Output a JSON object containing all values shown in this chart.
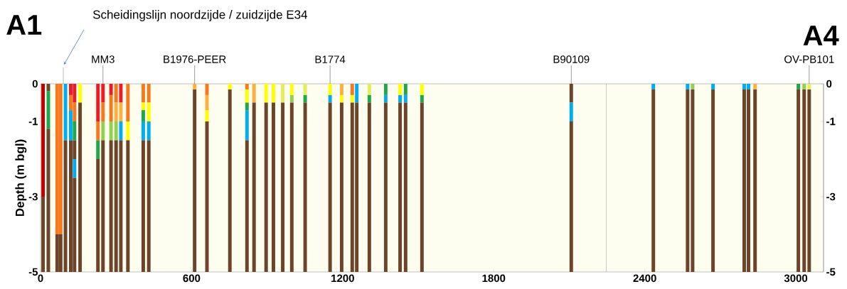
{
  "chart_data": {
    "type": "bar",
    "stacked": true,
    "ylabel": "Depth (m bgl)",
    "x": [
      10,
      31,
      66,
      80,
      99,
      120,
      135,
      157,
      228,
      248,
      280,
      300,
      319,
      347,
      408,
      430,
      612,
      661,
      752,
      820,
      848,
      896,
      925,
      962,
      998,
      1051,
      1150,
      1196,
      1238,
      1256,
      1306,
      1371,
      1428,
      1450,
      1515,
      2108,
      2434,
      2570,
      2590,
      2671,
      2795,
      2812,
      2838,
      3010,
      3033,
      3053
    ],
    "xlim": [
      0,
      3110
    ],
    "xticks": [
      0,
      600,
      1200,
      1800,
      2400,
      3000
    ],
    "ylim": [
      -5,
      0
    ],
    "yticks": [
      0,
      -1,
      -3,
      -5
    ],
    "y2lim": [
      -5,
      0
    ],
    "y2ticks": [
      0,
      -1,
      -3,
      -5
    ],
    "series": [
      {
        "values": [
          -3,
          -0.2,
          -4,
          -4,
          -1.5,
          -0.3,
          -0.5,
          -0.5,
          -1.0,
          -0.5,
          -0.3,
          -0.5,
          -0.5,
          -1.0,
          -0.5,
          -0.5,
          -0.15,
          -0.3,
          -0.15,
          -0.15,
          -0.5,
          -0.5,
          -0.5,
          -0.5,
          -0.3,
          -0.3,
          -0.3,
          -0.3,
          -0.3,
          -0.5,
          -0.3,
          -0.3,
          -0.3,
          -0.3,
          -0.3,
          -0.5,
          -0.15,
          -0.15,
          -0.15,
          -0.15,
          -0.15,
          -0.15,
          -0.15,
          -0.15,
          -0.15,
          -0.15
        ],
        "colors": [
          "#c00000",
          "#6b4429",
          "#f7791f",
          "#f7791f",
          "#00aeef",
          "#ed1c24",
          "#ed1c24",
          "#ffff00",
          "#ed1c24",
          "#ed1c24",
          "#ed1c24",
          "#f7791f",
          "#ed1c24",
          "#f7791f",
          "#f7791f",
          "#f7791f",
          "#fbb040",
          "#f7791f",
          "#ffff00",
          "#f7791f",
          "#fbb040",
          "#ffff00",
          "#ffff00",
          "#e4ee5c",
          "#ffff00",
          "#e4ee5c",
          "#ffff00",
          "#fbb040",
          "#f7791f",
          "#00aeef",
          "#e4ee5c",
          "#1ea84b",
          "#ffff00",
          "#1ea84b",
          "#ffff00",
          "#6b4429",
          "#00aeef",
          "#00aeef",
          "#92d050",
          "#00aeef",
          "#00aeef",
          "#00aeef",
          "#fbb040",
          "#1ea84b",
          "#92d050",
          "#e4ee5c"
        ]
      },
      {
        "values": [
          -2,
          -1.0,
          -1,
          -1,
          -3.5,
          -0.4,
          -0.5,
          -4.5,
          -0.5,
          -0.5,
          -0.7,
          -0.5,
          -0.5,
          -0.5,
          -0.2,
          -0.5,
          -4.85,
          -0.4,
          -4.85,
          -0.35,
          -4.5,
          -4.5,
          -4.5,
          -4.5,
          -0.2,
          -0.2,
          -0.2,
          -0.2,
          -0.2,
          -4.5,
          -0.2,
          -0.2,
          -0.2,
          -0.2,
          -0.2,
          -0.5,
          -4.85,
          -4.85,
          -4.85,
          -4.85,
          -4.85,
          -4.85,
          -4.85,
          -4.85,
          -4.85,
          -4.85
        ],
        "colors": [
          "#6b4429",
          "#1ea84b",
          "#6b4429",
          "#6b4429",
          "#6b4429",
          "#f7791f",
          "#f7791f",
          "#6b4429",
          "#f7791f",
          "#f7791f",
          "#f7791f",
          "#fbb040",
          "#fbb040",
          "#ffff00",
          "#ffff00",
          "#ffff00",
          "#6b4429",
          "#fbb040",
          "#6b4429",
          "#ffff00",
          "#6b4429",
          "#6b4429",
          "#6b4429",
          "#6b4429",
          "#92d050",
          "#1ea84b",
          "#00aeef",
          "#ffff00",
          "#ffff00",
          "#6b4429",
          "#1ea84b",
          "#00aeef",
          "#00aeef",
          "#00aeef",
          "#1ea84b",
          "#00aeef",
          "#6b4429",
          "#6b4429",
          "#6b4429",
          "#6b4429",
          "#6b4429",
          "#6b4429",
          "#6b4429",
          "#6b4429",
          "#6b4429",
          "#6b4429"
        ]
      },
      {
        "values": [
          null,
          -3.8,
          null,
          null,
          null,
          -0.8,
          -0.5,
          null,
          -0.5,
          -0.5,
          -0.5,
          -0.5,
          -0.5,
          -3.5,
          -0.3,
          -0.5,
          null,
          -0.3,
          null,
          -0.2,
          null,
          null,
          null,
          null,
          -4.5,
          -4.5,
          -4.5,
          -4.5,
          -4.5,
          null,
          -4.5,
          -4.5,
          -4.5,
          -4.5,
          -4.5,
          -4.0,
          null,
          null,
          null,
          null,
          null,
          null,
          null,
          null,
          null,
          null
        ],
        "colors": [
          null,
          "#6b4429",
          null,
          null,
          null,
          "#00aeef",
          "#1ea84b",
          null,
          "#1ea84b",
          "#92d050",
          "#92d050",
          "#92d050",
          "#00aeef",
          "#6b4429",
          "#1ea84b",
          "#00aeef",
          null,
          "#ffff00",
          null,
          "#1ea84b",
          null,
          null,
          null,
          null,
          "#6b4429",
          "#6b4429",
          "#6b4429",
          "#6b4429",
          "#6b4429",
          null,
          "#6b4429",
          "#6b4429",
          "#6b4429",
          "#6b4429",
          "#6b4429",
          "#6b4429",
          null,
          null,
          null,
          null,
          null,
          null,
          null,
          null,
          null,
          null
        ]
      },
      {
        "values": [
          null,
          null,
          null,
          null,
          null,
          -3.5,
          -0.5,
          null,
          -3.0,
          -3.5,
          -3.5,
          -3.5,
          -3.5,
          null,
          -0.5,
          -3.5,
          null,
          -4.0,
          null,
          -0.8,
          null,
          null,
          null,
          null,
          null,
          null,
          null,
          null,
          null,
          null,
          null,
          null,
          null,
          null,
          null,
          null,
          null,
          null,
          null,
          null,
          null,
          null,
          null,
          null,
          null,
          null
        ],
        "colors": [
          null,
          null,
          null,
          null,
          null,
          "#6b4429",
          "#6b4429",
          null,
          "#6b4429",
          "#6b4429",
          "#6b4429",
          "#6b4429",
          "#6b4429",
          null,
          "#00aeef",
          "#6b4429",
          null,
          "#6b4429",
          null,
          "#00aeef",
          null,
          null,
          null,
          null,
          null,
          null,
          null,
          null,
          null,
          null,
          null,
          null,
          null,
          null,
          null,
          null,
          null,
          null,
          null,
          null,
          null,
          null,
          null,
          null,
          null,
          null
        ]
      },
      {
        "values": [
          null,
          null,
          null,
          null,
          null,
          null,
          -0.5,
          null,
          null,
          null,
          null,
          null,
          null,
          null,
          -3.5,
          null,
          null,
          null,
          null,
          -3.5,
          null,
          null,
          null,
          null,
          null,
          null,
          null,
          null,
          null,
          null,
          null,
          null,
          null,
          null,
          null,
          null,
          null,
          null,
          null,
          null,
          null,
          null,
          null,
          null,
          null,
          null
        ],
        "colors": [
          null,
          null,
          null,
          null,
          null,
          null,
          "#00aeef",
          null,
          null,
          null,
          null,
          null,
          null,
          null,
          "#6b4429",
          null,
          null,
          null,
          null,
          "#6b4429",
          null,
          null,
          null,
          null,
          null,
          null,
          null,
          null,
          null,
          null,
          null,
          null,
          null,
          null,
          null,
          null,
          null,
          null,
          null,
          null,
          null,
          null,
          null,
          null,
          null,
          null
        ]
      },
      {
        "values": [
          null,
          null,
          null,
          null,
          null,
          null,
          -2.5,
          null,
          null,
          null,
          null,
          null,
          null,
          null,
          null,
          null,
          null,
          null,
          null,
          null,
          null,
          null,
          null,
          null,
          null,
          null,
          null,
          null,
          null,
          null,
          null,
          null,
          null,
          null,
          null,
          null,
          null,
          null,
          null,
          null,
          null,
          null,
          null,
          null,
          null,
          null
        ],
        "colors": [
          null,
          null,
          null,
          null,
          null,
          null,
          "#6b4429",
          null,
          null,
          null,
          null,
          null,
          null,
          null,
          null,
          null,
          null,
          null,
          null,
          null,
          null,
          null,
          null,
          null,
          null,
          null,
          null,
          null,
          null,
          null,
          null,
          null,
          null,
          null,
          null,
          null,
          null,
          null,
          null,
          null,
          null,
          null,
          null,
          null,
          null,
          null
        ]
      }
    ],
    "ref_lines": [
      {
        "axis": "x",
        "value": 2247,
        "color": "#808080"
      }
    ],
    "annotations": [
      "A1",
      "A4",
      "Scheidingslijn noordzijde / zuidzijde E34",
      {
        "text": "MM3",
        "x": 248,
        "y": 0
      },
      {
        "text": "B1976-PEER",
        "x": 612,
        "y": 0
      },
      {
        "text": "B1774",
        "x": 1150,
        "y": 0
      },
      {
        "text": "B90109",
        "x": 2108,
        "y": 0
      },
      {
        "text": "OV-PB101",
        "x": 3053,
        "y": 0
      }
    ]
  }
}
